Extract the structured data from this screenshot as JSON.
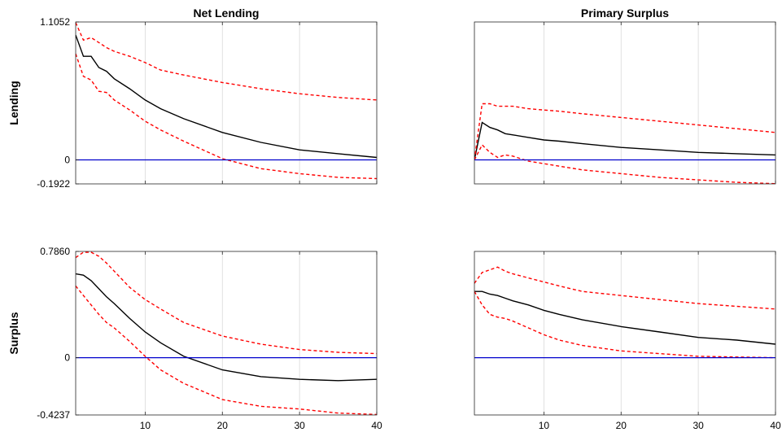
{
  "chart_data": [
    {
      "type": "line",
      "title": "Net Lending",
      "ylabel": "Lending",
      "xlim": [
        1,
        40
      ],
      "ylim": [
        -0.1922,
        1.1052
      ],
      "xticks": [
        10,
        20,
        30,
        40
      ],
      "xtick_labels": [
        "",
        "",
        "",
        ""
      ],
      "yticks": [
        -0.1922,
        0,
        1.1052
      ],
      "ytick_labels": [
        "-0.1922",
        "0",
        "1.1052"
      ],
      "grid": true,
      "x": [
        1,
        2,
        3,
        4,
        5,
        6,
        8,
        10,
        12,
        15,
        20,
        25,
        30,
        35,
        40
      ],
      "series": [
        {
          "role": "median",
          "color": "#000000",
          "values": [
            1.0,
            0.83,
            0.83,
            0.74,
            0.71,
            0.65,
            0.57,
            0.48,
            0.41,
            0.33,
            0.22,
            0.14,
            0.08,
            0.05,
            0.02
          ]
        },
        {
          "role": "upper",
          "color": "#ff0000",
          "values": [
            1.1,
            0.96,
            0.98,
            0.94,
            0.9,
            0.87,
            0.83,
            0.78,
            0.72,
            0.68,
            0.62,
            0.57,
            0.53,
            0.5,
            0.48
          ]
        },
        {
          "role": "lower",
          "color": "#ff0000",
          "values": [
            0.85,
            0.67,
            0.64,
            0.55,
            0.54,
            0.48,
            0.4,
            0.31,
            0.24,
            0.15,
            0.01,
            -0.07,
            -0.11,
            -0.14,
            -0.15
          ]
        },
        {
          "role": "zero",
          "color": "#0000cc",
          "values": [
            0,
            0,
            0,
            0,
            0,
            0,
            0,
            0,
            0,
            0,
            0,
            0,
            0,
            0,
            0
          ]
        }
      ]
    },
    {
      "type": "line",
      "title": "Primary Surplus",
      "ylabel": "",
      "xlim": [
        1,
        40
      ],
      "ylim": [
        -0.1922,
        1.1052
      ],
      "xticks": [
        10,
        20,
        30,
        40
      ],
      "xtick_labels": [
        "",
        "",
        "",
        ""
      ],
      "yticks": [],
      "ytick_labels": [],
      "grid": true,
      "x": [
        1,
        2,
        3,
        4,
        5,
        6,
        8,
        10,
        12,
        15,
        20,
        25,
        30,
        35,
        40
      ],
      "series": [
        {
          "role": "median",
          "color": "#000000",
          "values": [
            0.0,
            0.3,
            0.26,
            0.24,
            0.21,
            0.2,
            0.18,
            0.16,
            0.15,
            0.13,
            0.1,
            0.08,
            0.06,
            0.05,
            0.04
          ]
        },
        {
          "role": "upper",
          "color": "#ff0000",
          "values": [
            0.0,
            0.45,
            0.45,
            0.43,
            0.43,
            0.43,
            0.41,
            0.4,
            0.39,
            0.37,
            0.34,
            0.31,
            0.28,
            0.25,
            0.22
          ]
        },
        {
          "role": "lower",
          "color": "#ff0000",
          "values": [
            0.0,
            0.12,
            0.06,
            0.02,
            0.04,
            0.03,
            -0.01,
            -0.03,
            -0.05,
            -0.08,
            -0.11,
            -0.14,
            -0.16,
            -0.18,
            -0.19
          ]
        },
        {
          "role": "zero",
          "color": "#0000cc",
          "values": [
            0,
            0,
            0,
            0,
            0,
            0,
            0,
            0,
            0,
            0,
            0,
            0,
            0,
            0,
            0
          ]
        }
      ]
    },
    {
      "type": "line",
      "title": "",
      "ylabel": "Surplus",
      "xlim": [
        1,
        40
      ],
      "ylim": [
        -0.4237,
        0.786
      ],
      "xticks": [
        10,
        20,
        30,
        40
      ],
      "xtick_labels": [
        "10",
        "20",
        "30",
        "40"
      ],
      "yticks": [
        -0.4237,
        0,
        0.786
      ],
      "ytick_labels": [
        "-0.4237",
        "0",
        "0.7860"
      ],
      "grid": true,
      "x": [
        1,
        2,
        3,
        4,
        5,
        6,
        8,
        10,
        12,
        15,
        20,
        25,
        30,
        35,
        40
      ],
      "series": [
        {
          "role": "median",
          "color": "#000000",
          "values": [
            0.62,
            0.61,
            0.57,
            0.51,
            0.45,
            0.4,
            0.29,
            0.19,
            0.11,
            0.01,
            -0.09,
            -0.14,
            -0.16,
            -0.17,
            -0.16
          ]
        },
        {
          "role": "upper",
          "color": "#ff0000",
          "values": [
            0.74,
            0.78,
            0.78,
            0.75,
            0.7,
            0.64,
            0.52,
            0.43,
            0.36,
            0.26,
            0.16,
            0.1,
            0.06,
            0.04,
            0.03
          ]
        },
        {
          "role": "lower",
          "color": "#ff0000",
          "values": [
            0.53,
            0.46,
            0.39,
            0.32,
            0.26,
            0.22,
            0.12,
            0.01,
            -0.09,
            -0.19,
            -0.31,
            -0.36,
            -0.38,
            -0.41,
            -0.42
          ]
        },
        {
          "role": "zero",
          "color": "#0000cc",
          "values": [
            0,
            0,
            0,
            0,
            0,
            0,
            0,
            0,
            0,
            0,
            0,
            0,
            0,
            0,
            0
          ]
        }
      ]
    },
    {
      "type": "line",
      "title": "",
      "ylabel": "",
      "xlim": [
        1,
        40
      ],
      "ylim": [
        -0.4237,
        0.786
      ],
      "xticks": [
        10,
        20,
        30,
        40
      ],
      "xtick_labels": [
        "10",
        "20",
        "30",
        "40"
      ],
      "yticks": [],
      "ytick_labels": [],
      "grid": true,
      "x": [
        1,
        2,
        3,
        4,
        5,
        6,
        8,
        10,
        12,
        15,
        20,
        25,
        30,
        35,
        40
      ],
      "series": [
        {
          "role": "median",
          "color": "#000000",
          "values": [
            0.49,
            0.49,
            0.47,
            0.46,
            0.44,
            0.42,
            0.39,
            0.35,
            0.32,
            0.28,
            0.23,
            0.19,
            0.15,
            0.13,
            0.1
          ]
        },
        {
          "role": "upper",
          "color": "#ff0000",
          "values": [
            0.55,
            0.63,
            0.65,
            0.67,
            0.64,
            0.62,
            0.59,
            0.56,
            0.53,
            0.49,
            0.46,
            0.43,
            0.4,
            0.38,
            0.36
          ]
        },
        {
          "role": "lower",
          "color": "#ff0000",
          "values": [
            0.49,
            0.39,
            0.32,
            0.3,
            0.29,
            0.27,
            0.22,
            0.17,
            0.13,
            0.09,
            0.05,
            0.03,
            0.01,
            0.005,
            0.0
          ]
        },
        {
          "role": "zero",
          "color": "#0000cc",
          "values": [
            0,
            0,
            0,
            0,
            0,
            0,
            0,
            0,
            0,
            0,
            0,
            0,
            0,
            0,
            0
          ]
        }
      ]
    }
  ]
}
